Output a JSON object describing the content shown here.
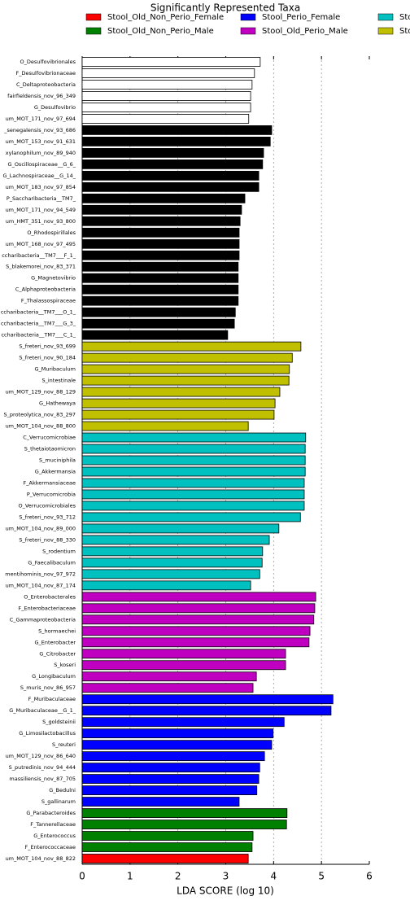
{
  "chart_data": {
    "type": "barh",
    "title": "Significantly Represented Taxa",
    "x_label": "LDA SCORE (log 10)",
    "legend": [
      {
        "name": "Stool_Old_Non_Perio_Female",
        "color": "#ff0000"
      },
      {
        "name": "Stool_Old_Non_Perio_Male",
        "color": "#008000"
      },
      {
        "name": "Stool_Perio_Female",
        "color": "#0000ff"
      },
      {
        "name": "Stool_Old_Perio_Male",
        "color": "#c000c0"
      },
      {
        "name": "Stoo",
        "color": "#00c0c0"
      },
      {
        "name": "Stoo",
        "color": "#c0c000"
      }
    ],
    "categories": [
      "O_Desulfovibrionales",
      "F_Desulfovibrionaceae",
      "C_Deltaproteobacteria",
      "fairfieldensis_nov_96_349",
      "G_Desulfovibrio",
      "um_MOT_171_nov_97_694",
      "_senegalensis_nov_93_686",
      "um_MOT_153_nov_91_631",
      "xylanophilum_nov_89_940",
      "G_Oscillospiraceae__G_6_",
      "G_Lachnospiraceae__G_14_",
      "um_MOT_183_nov_97_854",
      "P_Saccharibacteria__TM7_",
      "um_MOT_171_nov_94_549",
      "um_HMT_351_nov_93_800",
      "O_Rhodospirillales",
      "um_MOT_168_nov_97_495",
      "ccharibacteria__TM7___F_1_",
      "S_blakemorei_nov_83_371",
      "G_Magnetovibrio",
      "C_Alphaproteobacteria",
      "F_Thalassospiraceae",
      "ccharibacteria__TM7___O_1_",
      "ccharibacteria__TM7___G_3_",
      "ccharibacteria__TM7___C_1_",
      "S_freteri_nov_93_699",
      "S_freteri_nov_90_184",
      "G_Muribaculum",
      "S_intestinale",
      "um_MOT_129_nov_88_129",
      "G_Hathewaya",
      "S_proteolytica_nov_83_297",
      "um_MOT_104_nov_88_800",
      "C_Verrucomicrobiae",
      "S_thetaiotaomicron",
      "S_muciniphila",
      "G_Akkermansia",
      "F_Akkermansiaceae",
      "P_Verrucomicrobia",
      "O_Verrucomicrobiales",
      "S_freteri_nov_93_712",
      "um_MOT_104_nov_89_000",
      "S_freteri_nov_88_330",
      "S_rodentium",
      "G_Faecalibaculum",
      "mentihominis_nov_97_972",
      "um_MOT_104_nov_87_174",
      "O_Enterobacterales",
      "F_Enterobacteriaceae",
      "C_Gammaproteobacteria",
      "S_hormaechei",
      "G_Enterobacter",
      "G_Citrobacter",
      "S_koseri",
      "G_Longibaculum",
      "S_muris_nov_86_957",
      "F_Muribaculaceae",
      "G_Muribaculaceae__G_1_",
      "S_goldsteinii",
      "G_Limosilactobacillus",
      "S_reuteri",
      "um_MOT_129_nov_86_640",
      "S_putredinis_nov_94_444",
      "massiliensis_nov_87_705",
      "G_Bedulni",
      "S_gallinarum",
      "G_Parabacteroides",
      "F_Tannerellaceae",
      "G_Enterococcus",
      "F_Enterococcaceae",
      "um_MOT_104_nov_88_822"
    ],
    "values": [
      3.72,
      3.6,
      3.55,
      3.52,
      3.52,
      3.48,
      3.96,
      3.93,
      3.79,
      3.77,
      3.69,
      3.69,
      3.4,
      3.33,
      3.3,
      3.28,
      3.28,
      3.28,
      3.26,
      3.26,
      3.26,
      3.26,
      3.2,
      3.18,
      3.04,
      4.57,
      4.39,
      4.33,
      4.32,
      4.13,
      4.03,
      4.01,
      3.47,
      4.67,
      4.66,
      4.66,
      4.66,
      4.64,
      4.64,
      4.64,
      4.56,
      4.11,
      3.91,
      3.77,
      3.76,
      3.71,
      3.52,
      4.88,
      4.86,
      4.84,
      4.76,
      4.74,
      4.25,
      4.25,
      3.64,
      3.57,
      5.24,
      5.2,
      4.22,
      3.99,
      3.96,
      3.81,
      3.71,
      3.69,
      3.65,
      3.28,
      4.28,
      4.27,
      3.57,
      3.55,
      3.47
    ],
    "colors": [
      "#ffffff",
      "#ffffff",
      "#ffffff",
      "#ffffff",
      "#ffffff",
      "#ffffff",
      "#000000",
      "#000000",
      "#000000",
      "#000000",
      "#000000",
      "#000000",
      "#000000",
      "#000000",
      "#000000",
      "#000000",
      "#000000",
      "#000000",
      "#000000",
      "#000000",
      "#000000",
      "#000000",
      "#000000",
      "#000000",
      "#000000",
      "#c0c000",
      "#c0c000",
      "#c0c000",
      "#c0c000",
      "#c0c000",
      "#c0c000",
      "#c0c000",
      "#c0c000",
      "#00c0c0",
      "#00c0c0",
      "#00c0c0",
      "#00c0c0",
      "#00c0c0",
      "#00c0c0",
      "#00c0c0",
      "#00c0c0",
      "#00c0c0",
      "#00c0c0",
      "#00c0c0",
      "#00c0c0",
      "#00c0c0",
      "#00c0c0",
      "#c000c0",
      "#c000c0",
      "#c000c0",
      "#c000c0",
      "#c000c0",
      "#c000c0",
      "#c000c0",
      "#c000c0",
      "#c000c0",
      "#0000ff",
      "#0000ff",
      "#0000ff",
      "#0000ff",
      "#0000ff",
      "#0000ff",
      "#0000ff",
      "#0000ff",
      "#0000ff",
      "#0000ff",
      "#008000",
      "#008000",
      "#008000",
      "#008000",
      "#ff0000"
    ],
    "xlim": [
      0,
      6
    ],
    "xticks": [
      0,
      1,
      2,
      3,
      4,
      5,
      6
    ],
    "grid": true
  }
}
